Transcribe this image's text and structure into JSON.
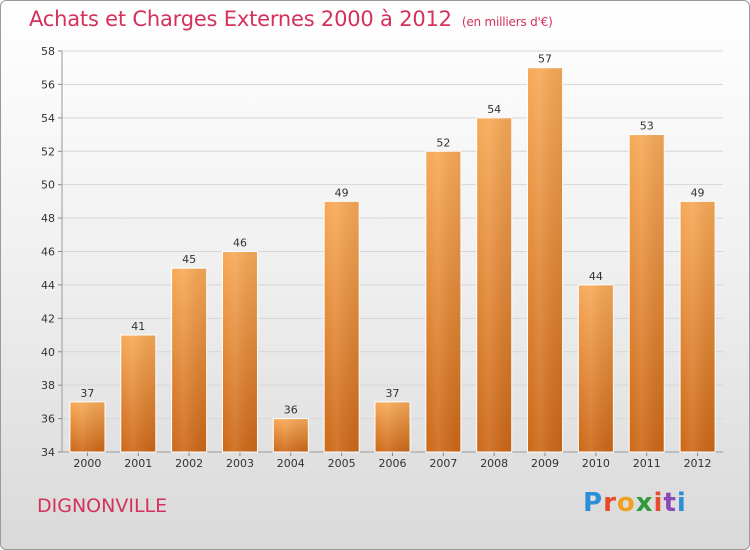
{
  "header": {
    "title": "Achats et Charges Externes 2000 à 2012",
    "unit": "(en milliers d'€)"
  },
  "footer": {
    "city": "DIGNONVILLE",
    "logo": "Proxiti"
  },
  "colors": {
    "title": "#d5315c",
    "bar_light": "#f6a552",
    "bar_dark": "#cf6a18"
  },
  "chart_data": {
    "type": "bar",
    "title": "Achats et Charges Externes 2000 à 2012",
    "subtitle": "(en milliers d'€)",
    "xlabel": "",
    "ylabel": "",
    "categories": [
      "2000",
      "2001",
      "2002",
      "2003",
      "2004",
      "2005",
      "2006",
      "2007",
      "2008",
      "2009",
      "2010",
      "2011",
      "2012"
    ],
    "values": [
      37,
      41,
      45,
      46,
      36,
      49,
      37,
      52,
      54,
      57,
      44,
      53,
      49
    ],
    "ylim": [
      34,
      58
    ],
    "yticks": [
      34,
      36,
      38,
      40,
      42,
      44,
      46,
      48,
      50,
      52,
      54,
      56,
      58
    ],
    "grid": true,
    "data_labels": true
  }
}
